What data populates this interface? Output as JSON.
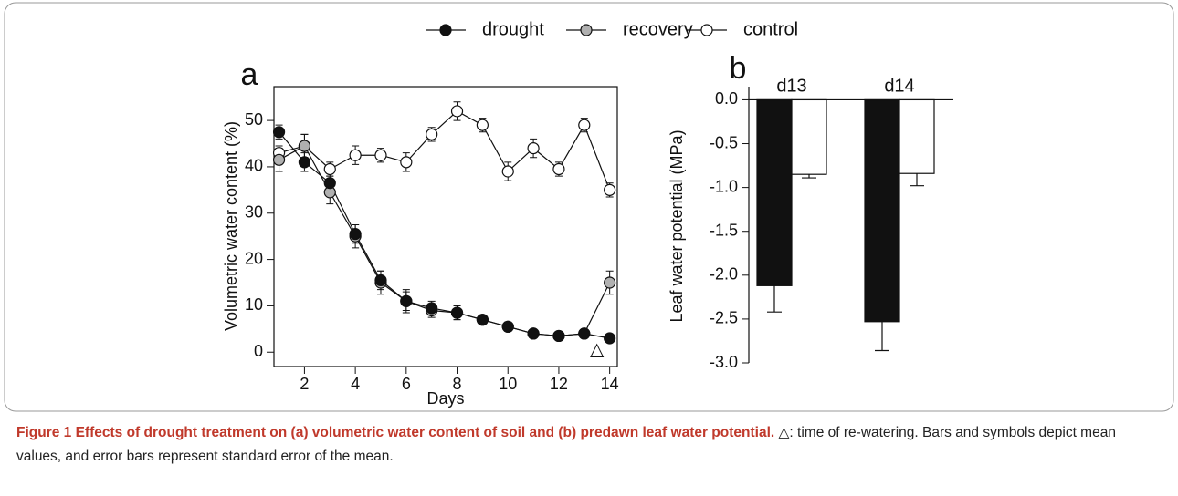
{
  "chart_data": [
    {
      "type": "line",
      "panel_label": "a",
      "xlabel": "Days",
      "ylabel": "Volumetric water content (%)",
      "x": [
        1,
        2,
        3,
        4,
        5,
        6,
        7,
        8,
        9,
        10,
        11,
        12,
        13,
        14
      ],
      "series": [
        {
          "name": "drought",
          "color": "#111111",
          "values": [
            47.5,
            41,
            36.5,
            25.5,
            15.5,
            11,
            9.5,
            8.5,
            7,
            5.5,
            4,
            3.5,
            4,
            3
          ],
          "errors": [
            1.5,
            2,
            1.5,
            2,
            2,
            2,
            1.5,
            1.5,
            1,
            0.5,
            0.5,
            0.5,
            0.5,
            0.5
          ]
        },
        {
          "name": "recovery",
          "color": "#b0b0b0",
          "values": [
            41.5,
            44.5,
            34.5,
            25,
            15,
            11,
            9,
            8.5,
            7,
            5.5,
            4,
            3.5,
            4,
            15
          ],
          "errors": [
            2.5,
            2.5,
            2.5,
            2.5,
            2.5,
            2.5,
            1.5,
            1.5,
            1,
            1,
            0.5,
            0.5,
            0.5,
            2.5
          ]
        },
        {
          "name": "control",
          "color": "#ffffff",
          "values": [
            43,
            44.5,
            39.5,
            42.5,
            42.5,
            41,
            47,
            52,
            49,
            39,
            44,
            39.5,
            49,
            35
          ],
          "errors": [
            1.5,
            2.5,
            1.5,
            2,
            1.5,
            2,
            1.5,
            2,
            1.5,
            2,
            2,
            1.5,
            1.5,
            1.5
          ]
        }
      ],
      "annotations": [
        {
          "text": "△",
          "x": 13.5,
          "y": 0
        }
      ],
      "xlim": [
        0.8,
        14.3
      ],
      "ylim": [
        -3.1,
        57.3
      ],
      "xticks": [
        2,
        4,
        6,
        8,
        10,
        12,
        14
      ],
      "yticks": [
        0,
        10,
        20,
        30,
        40,
        50
      ]
    },
    {
      "type": "bar",
      "panel_label": "b",
      "ylabel": "Leaf water potential (MPa)",
      "categories": [
        "d13",
        "d14"
      ],
      "series": [
        {
          "color": "#111111",
          "values": [
            -2.12,
            -2.53
          ],
          "errors": [
            0.3,
            0.33
          ]
        },
        {
          "color": "#ffffff",
          "values": [
            -0.85,
            -0.84
          ],
          "errors": [
            0.04,
            0.14
          ]
        }
      ],
      "ylim": [
        -3.0,
        0.15
      ],
      "yticks": [
        {
          "value": 0,
          "label": "0.0"
        },
        -0.5,
        {
          "value": -1,
          "label": "-1.0"
        },
        -1.5,
        {
          "value": -2,
          "label": "-2.0"
        },
        -2.5,
        {
          "value": -3,
          "label": "-3.0"
        }
      ]
    }
  ],
  "caption": {
    "title": "Figure 1 Effects of drought treatment on (a) volumetric water content of soil and (b) predawn leaf water potential.",
    "text": "△: time of re-watering. Bars and symbols depict mean values, and error bars represent standard error of the mean."
  }
}
